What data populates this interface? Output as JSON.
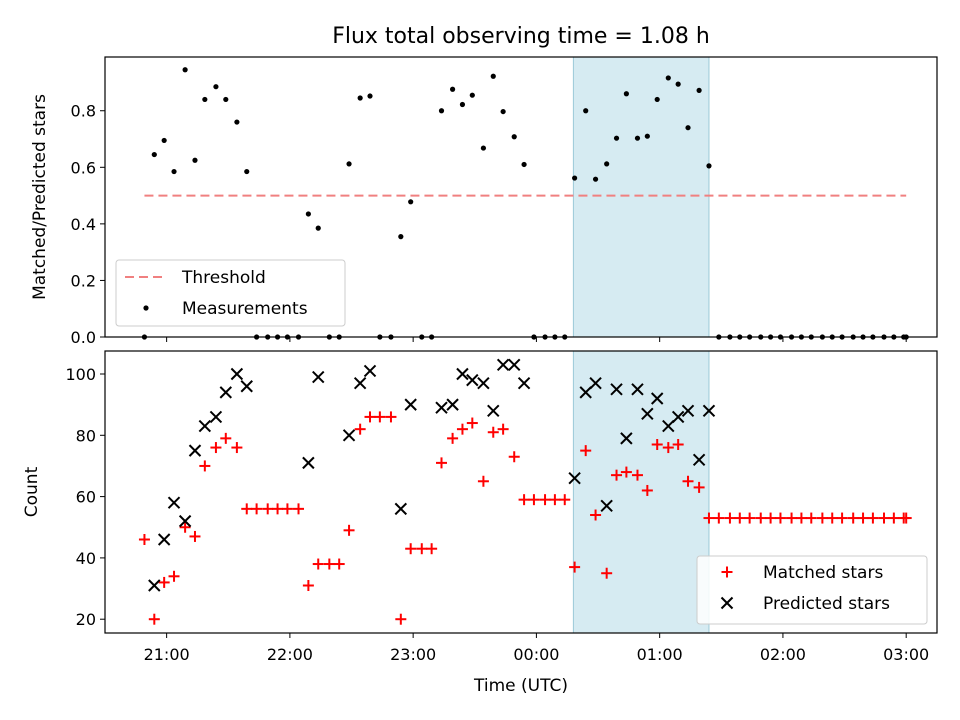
{
  "title": "Flux total observing time = 1.08 h",
  "colors": {
    "threshold": "#f08080",
    "measurements": "#000000",
    "matched": "#ff0000",
    "predicted": "#000000",
    "highlight_fill": "#add8e6"
  },
  "chart_data": [
    {
      "type": "scatter",
      "panel": "top",
      "xlabel": "",
      "ylabel": "Matched/Predicted stars",
      "x_unit": "hours after 21:00 UTC",
      "xlim": [
        -0.5,
        6.25
      ],
      "ylim": [
        0.0,
        0.99
      ],
      "yticks": [
        0.0,
        0.2,
        0.4,
        0.6,
        0.8
      ],
      "ytick_labels": [
        "0.0",
        "0.2",
        "0.4",
        "0.6",
        "0.8"
      ],
      "highlight_span": [
        3.3,
        4.4
      ],
      "threshold": {
        "name": "Threshold",
        "y": 0.5,
        "x_range": [
          -0.18,
          6.0
        ]
      },
      "legend": {
        "location": "lower-left",
        "entries": [
          "Threshold",
          "Measurements"
        ]
      },
      "series": [
        {
          "name": "Measurements",
          "marker": "dot",
          "x": [
            -0.18,
            -0.1,
            -0.02,
            0.06,
            0.15,
            0.23,
            0.31,
            0.4,
            0.48,
            0.57,
            0.65,
            0.73,
            0.82,
            0.9,
            0.98,
            1.07,
            1.15,
            1.23,
            1.32,
            1.4,
            1.48,
            1.57,
            1.65,
            1.73,
            1.82,
            1.9,
            1.98,
            2.07,
            2.15,
            2.23,
            2.32,
            2.4,
            2.48,
            2.57,
            2.65,
            2.73,
            2.82,
            2.9,
            2.98,
            3.07,
            3.15,
            3.23,
            3.31,
            3.4,
            3.48,
            3.57,
            3.65,
            3.73,
            3.82,
            3.9,
            3.98,
            4.07,
            4.15,
            4.23,
            4.32,
            4.4,
            4.48,
            4.57,
            4.65,
            4.73,
            4.82,
            4.9,
            4.98,
            5.07,
            5.15,
            5.23,
            5.32,
            5.4,
            5.48,
            5.57,
            5.65,
            5.73,
            5.82,
            5.9,
            5.98,
            6.0
          ],
          "y": [
            0.0,
            0.645,
            0.695,
            0.585,
            0.945,
            0.625,
            0.84,
            0.885,
            0.84,
            0.76,
            0.585,
            0.0,
            0.0,
            0.0,
            0.0,
            0.0,
            0.435,
            0.385,
            0.0,
            0.0,
            0.612,
            0.845,
            0.852,
            0.0,
            0.0,
            0.355,
            0.478,
            0.0,
            0.0,
            0.8,
            0.876,
            0.822,
            0.855,
            0.668,
            0.922,
            0.797,
            0.708,
            0.61,
            0.0,
            0.0,
            0.0,
            0.0,
            0.562,
            0.8,
            0.558,
            0.612,
            0.703,
            0.86,
            0.703,
            0.71,
            0.84,
            0.916,
            0.894,
            0.74,
            0.872,
            0.605,
            0.0,
            0.0,
            0.0,
            0.0,
            0.0,
            0.0,
            0.0,
            0.0,
            0.0,
            0.0,
            0.0,
            0.0,
            0.0,
            0.0,
            0.0,
            0.0,
            0.0,
            0.0,
            0.0,
            0.0
          ]
        }
      ]
    },
    {
      "type": "scatter",
      "panel": "bottom",
      "xlabel": "Time (UTC)",
      "ylabel": "Count",
      "x_unit": "hours after 21:00 UTC",
      "xlim": [
        -0.5,
        6.25
      ],
      "ylim": [
        15.5,
        107.5
      ],
      "xticks": [
        0,
        1,
        2,
        3,
        4,
        5,
        6
      ],
      "xtick_labels": [
        "21:00",
        "22:00",
        "23:00",
        "00:00",
        "01:00",
        "02:00",
        "03:00"
      ],
      "yticks": [
        20,
        40,
        60,
        80,
        100
      ],
      "ytick_labels": [
        "20",
        "40",
        "60",
        "80",
        "100"
      ],
      "highlight_span": [
        3.3,
        4.4
      ],
      "legend": {
        "location": "lower-right",
        "entries": [
          "Matched stars",
          "Predicted stars"
        ]
      },
      "series": [
        {
          "name": "Matched stars",
          "marker": "plus",
          "x": [
            -0.18,
            -0.1,
            -0.02,
            0.06,
            0.15,
            0.23,
            0.31,
            0.4,
            0.48,
            0.57,
            0.65,
            0.73,
            0.82,
            0.9,
            0.98,
            1.07,
            1.15,
            1.23,
            1.32,
            1.4,
            1.48,
            1.57,
            1.65,
            1.73,
            1.82,
            1.9,
            1.98,
            2.07,
            2.15,
            2.23,
            2.32,
            2.4,
            2.48,
            2.57,
            2.65,
            2.73,
            2.82,
            2.9,
            2.98,
            3.07,
            3.15,
            3.23,
            3.31,
            3.4,
            3.48,
            3.57,
            3.65,
            3.73,
            3.82,
            3.9,
            3.98,
            4.07,
            4.15,
            4.23,
            4.32,
            4.4,
            4.48,
            4.57,
            4.65,
            4.73,
            4.82,
            4.9,
            4.98,
            5.07,
            5.15,
            5.23,
            5.32,
            5.4,
            5.48,
            5.57,
            5.65,
            5.73,
            5.82,
            5.9,
            5.98,
            6.0
          ],
          "y": [
            46,
            20,
            32,
            34,
            50,
            47,
            70,
            76,
            79,
            76,
            56,
            56,
            56,
            56,
            56,
            56,
            31,
            38,
            38,
            38,
            49,
            82,
            86,
            86,
            86,
            20,
            43,
            43,
            43,
            71,
            79,
            82,
            84,
            65,
            81,
            82,
            73,
            59,
            59,
            59,
            59,
            59,
            37,
            75,
            54,
            35,
            67,
            68,
            67,
            62,
            77,
            76,
            77,
            65,
            63,
            53,
            53,
            53,
            53,
            53,
            53,
            53,
            53,
            53,
            53,
            53,
            53,
            53,
            53,
            53,
            53,
            53,
            53,
            53,
            53,
            53
          ]
        },
        {
          "name": "Predicted stars",
          "marker": "x",
          "x": [
            -0.1,
            -0.02,
            0.06,
            0.15,
            0.23,
            0.31,
            0.4,
            0.48,
            0.57,
            0.65,
            1.15,
            1.23,
            1.48,
            1.57,
            1.65,
            1.9,
            1.98,
            2.23,
            2.32,
            2.4,
            2.48,
            2.57,
            2.65,
            2.73,
            2.82,
            2.9,
            3.31,
            3.4,
            3.48,
            3.57,
            3.65,
            3.73,
            3.82,
            3.9,
            3.98,
            4.07,
            4.15,
            4.23,
            4.32,
            4.4
          ],
          "y": [
            31,
            46,
            58,
            52,
            75,
            83,
            86,
            94,
            100,
            96,
            71,
            99,
            80,
            97,
            101,
            56,
            90,
            89,
            90,
            100,
            98,
            97,
            88,
            103,
            103,
            97,
            66,
            94,
            97,
            57,
            95,
            79,
            95,
            87,
            92,
            83,
            86,
            88,
            72,
            88
          ]
        }
      ]
    }
  ]
}
